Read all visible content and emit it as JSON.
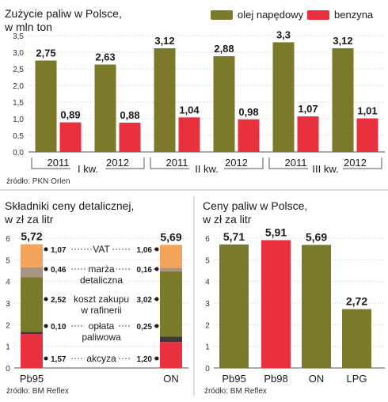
{
  "colors": {
    "olive": "#7a7a2a",
    "red": "#e8303f",
    "orange": "#f3a35a",
    "brown": "#a89480",
    "dark": "#3a3a3a",
    "grid": "#cccccc"
  },
  "chart_data": [
    {
      "type": "bar",
      "title": "Zużycie paliw w Polsce,",
      "subtitle": "w mln ton",
      "source": "źródło: PKN Orlen",
      "legend_position": "top-right",
      "ylim": [
        0,
        3.5
      ],
      "yticks": [
        "0,0",
        "0,5",
        "1,0",
        "1,5",
        "2,0",
        "2,5",
        "3,0",
        "3,5"
      ],
      "categories": [
        "2011",
        "2012",
        "2011",
        "2012",
        "2011",
        "2012"
      ],
      "groups": [
        "I kw.",
        "II kw.",
        "III kw."
      ],
      "series": [
        {
          "name": "olej napędowy",
          "color": "#7a7a2a",
          "values": [
            2.75,
            2.63,
            3.12,
            2.88,
            3.3,
            3.12
          ],
          "labels": [
            "2,75",
            "2,63",
            "3,12",
            "2,88",
            "3,3",
            "3,12"
          ]
        },
        {
          "name": "benzyna",
          "color": "#e8303f",
          "values": [
            0.89,
            0.88,
            1.04,
            0.98,
            1.07,
            1.01
          ],
          "labels": [
            "0,89",
            "0,88",
            "1,04",
            "0,98",
            "1,07",
            "1,01"
          ]
        }
      ]
    },
    {
      "type": "bar",
      "title": "Składniki ceny detalicznej,",
      "subtitle": "w zł za litr",
      "source": "źródło: BM Reflex",
      "ylim": [
        0,
        6
      ],
      "yticks": [
        "0",
        "1",
        "2",
        "3",
        "4",
        "5",
        "6"
      ],
      "categories": [
        "Pb95",
        "ON"
      ],
      "totals": [
        "5,72",
        "5,69"
      ],
      "components": [
        {
          "name": "akcyza",
          "color": "#e8303f",
          "values": [
            1.57,
            1.2
          ],
          "labels": [
            "1,57",
            "1,20"
          ]
        },
        {
          "name": "opłata paliwowa",
          "color": "#3a3a3a",
          "values": [
            0.1,
            0.25
          ],
          "labels": [
            "0,10",
            "0,25"
          ]
        },
        {
          "name": "koszt zakupu w rafinerii",
          "color": "#7a7a2a",
          "values": [
            2.52,
            3.02
          ],
          "labels": [
            "2,52",
            "3,02"
          ]
        },
        {
          "name": "marża detaliczna",
          "color": "#a89480",
          "values": [
            0.46,
            0.16
          ],
          "labels": [
            "0,46",
            "0,16"
          ]
        },
        {
          "name": "VAT",
          "color": "#f3a35a",
          "values": [
            1.07,
            1.06
          ],
          "labels": [
            "1,07",
            "1,06"
          ]
        }
      ],
      "component_text": {
        "akcyza": [
          "akcyza"
        ],
        "opłata paliwowa": [
          "opłata",
          "paliwowa"
        ],
        "koszt zakupu w rafinerii": [
          "koszt zakupu",
          "w rafinerii"
        ],
        "marża detaliczna": [
          "marża",
          "detaliczna"
        ],
        "VAT": [
          "VAT"
        ]
      }
    },
    {
      "type": "bar",
      "title": "Ceny paliw w Polsce,",
      "subtitle": "w zł za litr",
      "source": "źródło: BM Reflex",
      "ylim": [
        0,
        6
      ],
      "yticks": [
        "0",
        "1",
        "2",
        "3",
        "4",
        "5",
        "6"
      ],
      "categories": [
        "Pb95",
        "Pb98",
        "ON",
        "LPG"
      ],
      "values": [
        5.71,
        5.91,
        5.69,
        2.72
      ],
      "labels": [
        "5,71",
        "5,91",
        "5,69",
        "2,72"
      ],
      "colors": [
        "#7a7a2a",
        "#e8303f",
        "#7a7a2a",
        "#7a7a2a"
      ]
    }
  ]
}
